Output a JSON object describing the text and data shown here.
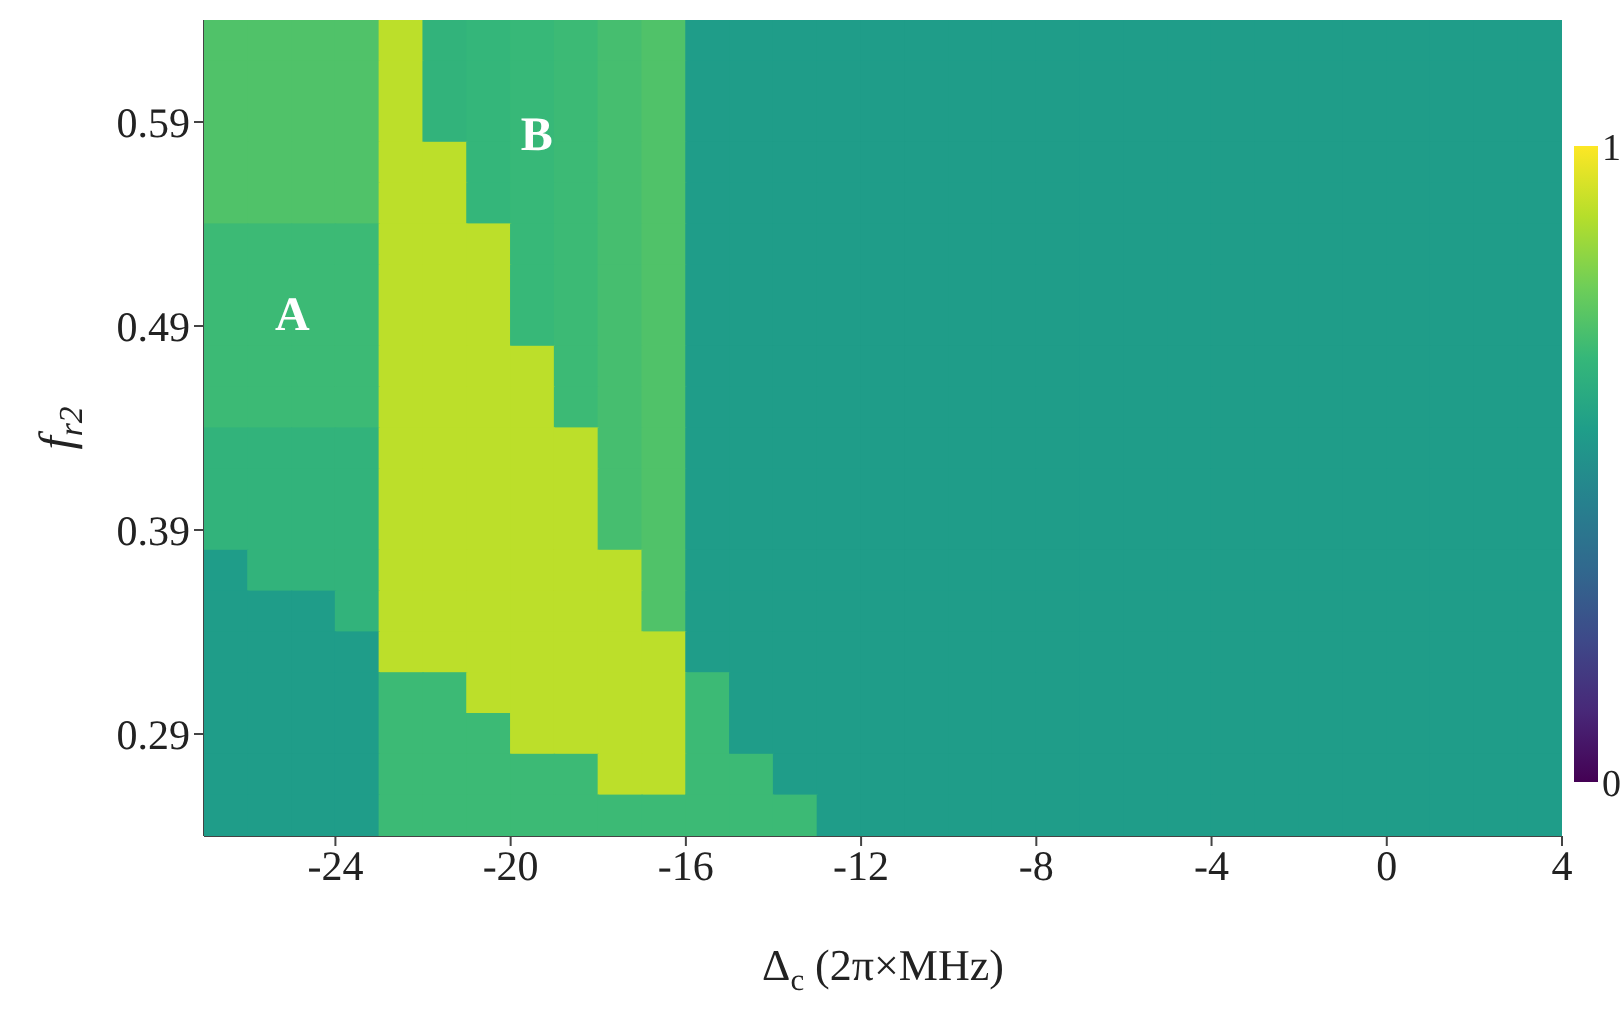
{
  "chart_data": {
    "type": "heatmap",
    "xlabel": "Δ$_{c}$ (2π×MHz)",
    "ylabel": "f$_{r2}$",
    "x": [
      -26.5,
      -25.5,
      -24.5,
      -23.5,
      -22.5,
      -21.5,
      -20.5,
      -19.5,
      -18.5,
      -17.5,
      -16.5,
      -15.5,
      -14.5,
      -13.5,
      -12.5,
      -11.5,
      -10.5,
      -9.5,
      -8.5,
      -7.5,
      -6.5,
      -5.5,
      -4.5,
      -3.5,
      -2.5,
      -1.5,
      -0.5,
      0.5,
      1.5,
      2.5,
      3.5
    ],
    "y": [
      0.63,
      0.61,
      0.59,
      0.57,
      0.55,
      0.53,
      0.51,
      0.49,
      0.47,
      0.45,
      0.43,
      0.41,
      0.39,
      0.37,
      0.35,
      0.33,
      0.31,
      0.29,
      0.27,
      0.25
    ],
    "xlim": [
      -27,
      4
    ],
    "xticks": [
      -24,
      -20,
      -16,
      -12,
      -8,
      -4,
      0,
      4
    ],
    "ylim": [
      0.24,
      0.64
    ],
    "yticks": [
      0.29,
      0.39,
      0.49,
      0.59
    ],
    "clim": [
      0,
      1
    ],
    "cticks": [
      0,
      1
    ],
    "annotations": [
      "A",
      "B"
    ],
    "cells": [
      [
        0.72,
        0.72,
        0.72,
        0.72,
        0.9,
        0.65,
        0.66,
        0.67,
        0.68,
        0.7,
        0.72,
        0.55,
        0.55,
        0.55,
        0.55,
        0.55,
        0.55,
        0.55,
        0.55,
        0.55,
        0.55,
        0.55,
        0.55,
        0.55,
        0.55,
        0.55,
        0.55,
        0.55,
        0.55,
        0.55,
        0.55
      ],
      [
        0.72,
        0.72,
        0.72,
        0.72,
        0.9,
        0.65,
        0.66,
        0.67,
        0.68,
        0.7,
        0.72,
        0.55,
        0.55,
        0.55,
        0.55,
        0.55,
        0.55,
        0.55,
        0.55,
        0.55,
        0.55,
        0.55,
        0.55,
        0.55,
        0.55,
        0.55,
        0.55,
        0.55,
        0.55,
        0.55,
        0.55
      ],
      [
        0.72,
        0.72,
        0.72,
        0.72,
        0.9,
        0.65,
        0.66,
        0.67,
        0.68,
        0.7,
        0.72,
        0.55,
        0.55,
        0.55,
        0.55,
        0.55,
        0.55,
        0.55,
        0.55,
        0.55,
        0.55,
        0.55,
        0.55,
        0.55,
        0.55,
        0.55,
        0.55,
        0.55,
        0.55,
        0.55,
        0.55
      ],
      [
        0.72,
        0.72,
        0.72,
        0.72,
        0.9,
        0.9,
        0.66,
        0.67,
        0.68,
        0.7,
        0.72,
        0.55,
        0.55,
        0.55,
        0.55,
        0.55,
        0.55,
        0.55,
        0.55,
        0.55,
        0.55,
        0.55,
        0.55,
        0.55,
        0.55,
        0.55,
        0.55,
        0.55,
        0.55,
        0.55,
        0.55
      ],
      [
        0.72,
        0.72,
        0.72,
        0.72,
        0.9,
        0.9,
        0.66,
        0.67,
        0.68,
        0.7,
        0.72,
        0.55,
        0.55,
        0.55,
        0.55,
        0.55,
        0.55,
        0.55,
        0.55,
        0.55,
        0.55,
        0.55,
        0.55,
        0.55,
        0.55,
        0.55,
        0.55,
        0.55,
        0.55,
        0.55,
        0.55
      ],
      [
        0.68,
        0.68,
        0.68,
        0.68,
        0.9,
        0.9,
        0.9,
        0.67,
        0.68,
        0.7,
        0.72,
        0.55,
        0.55,
        0.55,
        0.55,
        0.55,
        0.55,
        0.55,
        0.55,
        0.55,
        0.55,
        0.55,
        0.55,
        0.55,
        0.55,
        0.55,
        0.55,
        0.55,
        0.55,
        0.55,
        0.55
      ],
      [
        0.68,
        0.68,
        0.68,
        0.68,
        0.9,
        0.9,
        0.9,
        0.67,
        0.68,
        0.7,
        0.72,
        0.55,
        0.55,
        0.55,
        0.55,
        0.55,
        0.55,
        0.55,
        0.55,
        0.55,
        0.55,
        0.55,
        0.55,
        0.55,
        0.55,
        0.55,
        0.55,
        0.55,
        0.55,
        0.55,
        0.55
      ],
      [
        0.68,
        0.68,
        0.68,
        0.68,
        0.9,
        0.9,
        0.9,
        0.67,
        0.68,
        0.7,
        0.72,
        0.55,
        0.55,
        0.55,
        0.55,
        0.55,
        0.55,
        0.55,
        0.55,
        0.55,
        0.55,
        0.55,
        0.55,
        0.55,
        0.55,
        0.55,
        0.55,
        0.55,
        0.55,
        0.55,
        0.55
      ],
      [
        0.68,
        0.68,
        0.68,
        0.68,
        0.9,
        0.9,
        0.9,
        0.9,
        0.68,
        0.7,
        0.72,
        0.55,
        0.55,
        0.55,
        0.55,
        0.55,
        0.55,
        0.55,
        0.55,
        0.55,
        0.55,
        0.55,
        0.55,
        0.55,
        0.55,
        0.55,
        0.55,
        0.55,
        0.55,
        0.55,
        0.55
      ],
      [
        0.68,
        0.68,
        0.68,
        0.68,
        0.9,
        0.9,
        0.9,
        0.9,
        0.68,
        0.7,
        0.72,
        0.55,
        0.55,
        0.55,
        0.55,
        0.55,
        0.55,
        0.55,
        0.55,
        0.55,
        0.55,
        0.55,
        0.55,
        0.55,
        0.55,
        0.55,
        0.55,
        0.55,
        0.55,
        0.55,
        0.55
      ],
      [
        0.65,
        0.65,
        0.65,
        0.65,
        0.9,
        0.9,
        0.9,
        0.9,
        0.9,
        0.7,
        0.72,
        0.55,
        0.55,
        0.55,
        0.55,
        0.55,
        0.55,
        0.55,
        0.55,
        0.55,
        0.55,
        0.55,
        0.55,
        0.55,
        0.55,
        0.55,
        0.55,
        0.55,
        0.55,
        0.55,
        0.55
      ],
      [
        0.65,
        0.65,
        0.65,
        0.65,
        0.9,
        0.9,
        0.9,
        0.9,
        0.9,
        0.7,
        0.72,
        0.55,
        0.55,
        0.55,
        0.55,
        0.55,
        0.55,
        0.55,
        0.55,
        0.55,
        0.55,
        0.55,
        0.55,
        0.55,
        0.55,
        0.55,
        0.55,
        0.55,
        0.55,
        0.55,
        0.55
      ],
      [
        0.65,
        0.65,
        0.65,
        0.65,
        0.9,
        0.9,
        0.9,
        0.9,
        0.9,
        0.7,
        0.72,
        0.55,
        0.55,
        0.55,
        0.55,
        0.55,
        0.55,
        0.55,
        0.55,
        0.55,
        0.55,
        0.55,
        0.55,
        0.55,
        0.55,
        0.55,
        0.55,
        0.55,
        0.55,
        0.55,
        0.55
      ],
      [
        0.55,
        0.65,
        0.65,
        0.65,
        0.9,
        0.9,
        0.9,
        0.9,
        0.9,
        0.9,
        0.72,
        0.55,
        0.55,
        0.55,
        0.55,
        0.55,
        0.55,
        0.55,
        0.55,
        0.55,
        0.55,
        0.55,
        0.55,
        0.55,
        0.55,
        0.55,
        0.55,
        0.55,
        0.55,
        0.55,
        0.55
      ],
      [
        0.55,
        0.55,
        0.55,
        0.65,
        0.9,
        0.9,
        0.9,
        0.9,
        0.9,
        0.9,
        0.72,
        0.55,
        0.55,
        0.55,
        0.55,
        0.55,
        0.55,
        0.55,
        0.55,
        0.55,
        0.55,
        0.55,
        0.55,
        0.55,
        0.55,
        0.55,
        0.55,
        0.55,
        0.55,
        0.55,
        0.55
      ],
      [
        0.55,
        0.55,
        0.55,
        0.55,
        0.9,
        0.9,
        0.9,
        0.9,
        0.9,
        0.9,
        0.9,
        0.55,
        0.55,
        0.55,
        0.55,
        0.55,
        0.55,
        0.55,
        0.55,
        0.55,
        0.55,
        0.55,
        0.55,
        0.55,
        0.55,
        0.55,
        0.55,
        0.55,
        0.55,
        0.55,
        0.55
      ],
      [
        0.55,
        0.55,
        0.55,
        0.55,
        0.68,
        0.68,
        0.9,
        0.9,
        0.9,
        0.9,
        0.9,
        0.68,
        0.55,
        0.55,
        0.55,
        0.55,
        0.55,
        0.55,
        0.55,
        0.55,
        0.55,
        0.55,
        0.55,
        0.55,
        0.55,
        0.55,
        0.55,
        0.55,
        0.55,
        0.55,
        0.55
      ],
      [
        0.55,
        0.55,
        0.55,
        0.55,
        0.68,
        0.68,
        0.68,
        0.9,
        0.9,
        0.9,
        0.9,
        0.68,
        0.55,
        0.55,
        0.55,
        0.55,
        0.55,
        0.55,
        0.55,
        0.55,
        0.55,
        0.55,
        0.55,
        0.55,
        0.55,
        0.55,
        0.55,
        0.55,
        0.55,
        0.55,
        0.55
      ],
      [
        0.55,
        0.55,
        0.55,
        0.55,
        0.68,
        0.68,
        0.68,
        0.68,
        0.68,
        0.9,
        0.9,
        0.68,
        0.68,
        0.55,
        0.55,
        0.55,
        0.55,
        0.55,
        0.55,
        0.55,
        0.55,
        0.55,
        0.55,
        0.55,
        0.55,
        0.55,
        0.55,
        0.55,
        0.55,
        0.55,
        0.55
      ],
      [
        0.55,
        0.55,
        0.55,
        0.55,
        0.68,
        0.68,
        0.68,
        0.68,
        0.68,
        0.68,
        0.68,
        0.68,
        0.68,
        0.68,
        0.55,
        0.55,
        0.55,
        0.55,
        0.55,
        0.55,
        0.55,
        0.55,
        0.55,
        0.55,
        0.55,
        0.55,
        0.55,
        0.55,
        0.55,
        0.55,
        0.55
      ]
    ]
  }
}
